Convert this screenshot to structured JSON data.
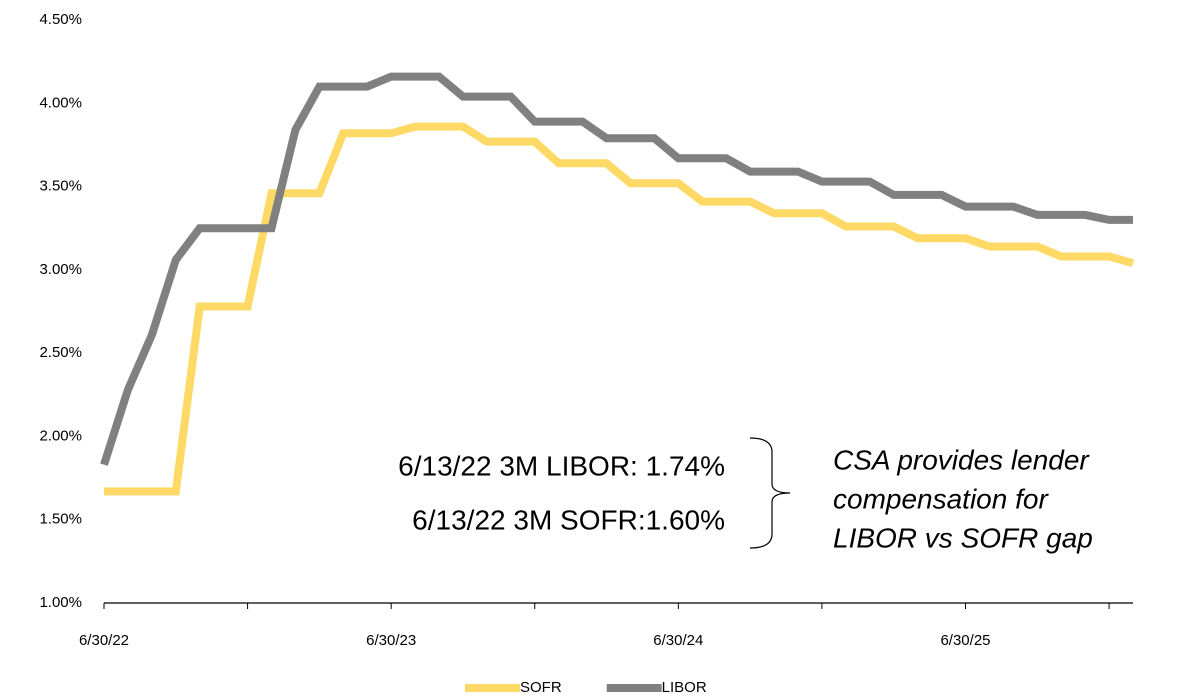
{
  "chart_data": {
    "type": "line",
    "categories": [
      "6/30/22",
      null,
      null,
      null,
      null,
      null,
      null,
      null,
      null,
      null,
      null,
      null,
      "6/30/23",
      null,
      null,
      null,
      null,
      null,
      null,
      null,
      null,
      null,
      null,
      null,
      "6/30/24",
      null,
      null,
      null,
      null,
      null,
      null,
      null,
      null,
      null,
      null,
      null,
      "6/30/25",
      null,
      null,
      null,
      null,
      null,
      null,
      null
    ],
    "series": [
      {
        "name": "SOFR",
        "color": "#ffd966",
        "values": [
          1.67,
          1.67,
          1.67,
          1.67,
          2.78,
          2.78,
          2.78,
          3.46,
          3.46,
          3.46,
          3.82,
          3.82,
          3.82,
          3.86,
          3.86,
          3.86,
          3.77,
          3.77,
          3.77,
          3.64,
          3.64,
          3.64,
          3.52,
          3.52,
          3.52,
          3.41,
          3.41,
          3.41,
          3.34,
          3.34,
          3.34,
          3.26,
          3.26,
          3.26,
          3.19,
          3.19,
          3.19,
          3.14,
          3.14,
          3.14,
          3.08,
          3.08,
          3.08,
          3.04
        ]
      },
      {
        "name": "LIBOR",
        "color": "#808080",
        "values": [
          1.83,
          2.28,
          2.61,
          3.06,
          3.25,
          3.25,
          3.25,
          3.25,
          3.84,
          4.1,
          4.1,
          4.1,
          4.16,
          4.16,
          4.16,
          4.04,
          4.04,
          4.04,
          3.89,
          3.89,
          3.89,
          3.79,
          3.79,
          3.79,
          3.67,
          3.67,
          3.67,
          3.59,
          3.59,
          3.59,
          3.53,
          3.53,
          3.53,
          3.45,
          3.45,
          3.45,
          3.38,
          3.38,
          3.38,
          3.33,
          3.33,
          3.33,
          3.3,
          3.3
        ]
      }
    ],
    "ylim": [
      1.0,
      4.5
    ],
    "yticks": [
      {
        "value": 1.0,
        "label": "1.00%"
      },
      {
        "value": 1.5,
        "label": "1.50%"
      },
      {
        "value": 2.0,
        "label": "2.00%"
      },
      {
        "value": 2.5,
        "label": "2.50%"
      },
      {
        "value": 3.0,
        "label": "3.00%"
      },
      {
        "value": 3.5,
        "label": "3.50%"
      },
      {
        "value": 4.0,
        "label": "4.00%"
      },
      {
        "value": 4.5,
        "label": "4.50%"
      }
    ],
    "grid": false,
    "legend": "bottom",
    "annotations": [
      "6/13/22 3M LIBOR: 1.74%",
      "6/13/22 3M SOFR:1.60%"
    ],
    "note": [
      "CSA provides lender",
      "compensation for",
      "LIBOR vs SOFR gap"
    ]
  }
}
